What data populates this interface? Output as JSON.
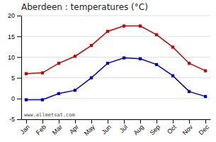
{
  "chart_data": {
    "type": "line",
    "title": "Aberdeen : temperatures (°C)",
    "categories": [
      "Jan",
      "Feb",
      "Mar",
      "Apr",
      "May",
      "Jun",
      "Jul",
      "Aug",
      "Sep",
      "Oct",
      "Nov",
      "Dec"
    ],
    "series": [
      {
        "color": "#cc0000",
        "marker": "square",
        "values": [
          6.0,
          6.2,
          8.5,
          10.2,
          12.8,
          16.2,
          17.5,
          17.5,
          15.4,
          12.4,
          8.5,
          6.7
        ]
      },
      {
        "color": "#0000cc",
        "marker": "square",
        "values": [
          -0.3,
          -0.3,
          1.2,
          2.0,
          5.0,
          8.5,
          9.8,
          9.6,
          8.2,
          5.5,
          1.7,
          0.5
        ]
      }
    ],
    "ylim": [
      -5,
      20
    ],
    "yticks": [
      -5,
      0,
      5,
      10,
      15,
      20
    ],
    "grid": true,
    "annotations": [
      {
        "text": "www.allmetsat.com"
      }
    ]
  }
}
